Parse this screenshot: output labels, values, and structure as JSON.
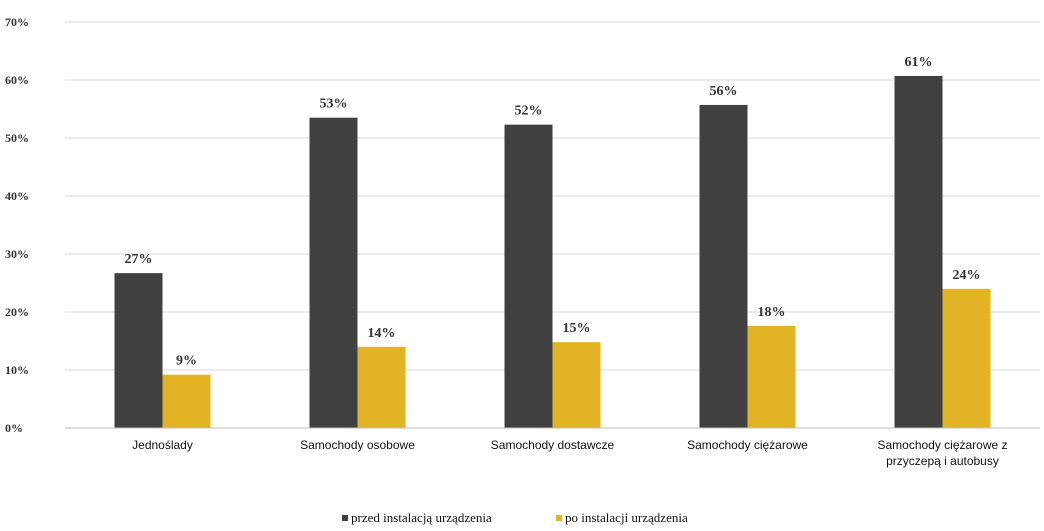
{
  "chart_data": {
    "type": "bar",
    "categories": [
      [
        "Jednoślady"
      ],
      [
        "Samochody osobowe"
      ],
      [
        "Samochody dostawcze"
      ],
      [
        "Samochody ciężarowe"
      ],
      [
        "Samochody ciężarowe z",
        "przyczepą i autobusy"
      ]
    ],
    "series": [
      {
        "name": "przed instalacją urządzenia",
        "values": [
          26.7,
          53.5,
          52.3,
          55.7,
          60.7
        ],
        "labels": [
          "27%",
          "53%",
          "52%",
          "56%",
          "61%"
        ],
        "color": "#404040"
      },
      {
        "name": "po instalacji urządzenia",
        "values": [
          9.2,
          14.0,
          14.8,
          17.6,
          24.0
        ],
        "labels": [
          "9%",
          "14%",
          "15%",
          "18%",
          "24%"
        ],
        "color": "#E2B324"
      }
    ],
    "ylim": [
      0,
      70
    ],
    "yticks": [
      {
        "value": 0,
        "label": "0%"
      },
      {
        "value": 10,
        "label": "10%"
      },
      {
        "value": 20,
        "label": "20%"
      },
      {
        "value": 30,
        "label": "30%"
      },
      {
        "value": 40,
        "label": "40%"
      },
      {
        "value": 50,
        "label": "50%"
      },
      {
        "value": 60,
        "label": "60%"
      },
      {
        "value": 70,
        "label": "70%"
      }
    ],
    "grid": true,
    "legend": "bottom",
    "axis_color": "#bfbfbf",
    "grid_color": "#d9d9d9"
  }
}
